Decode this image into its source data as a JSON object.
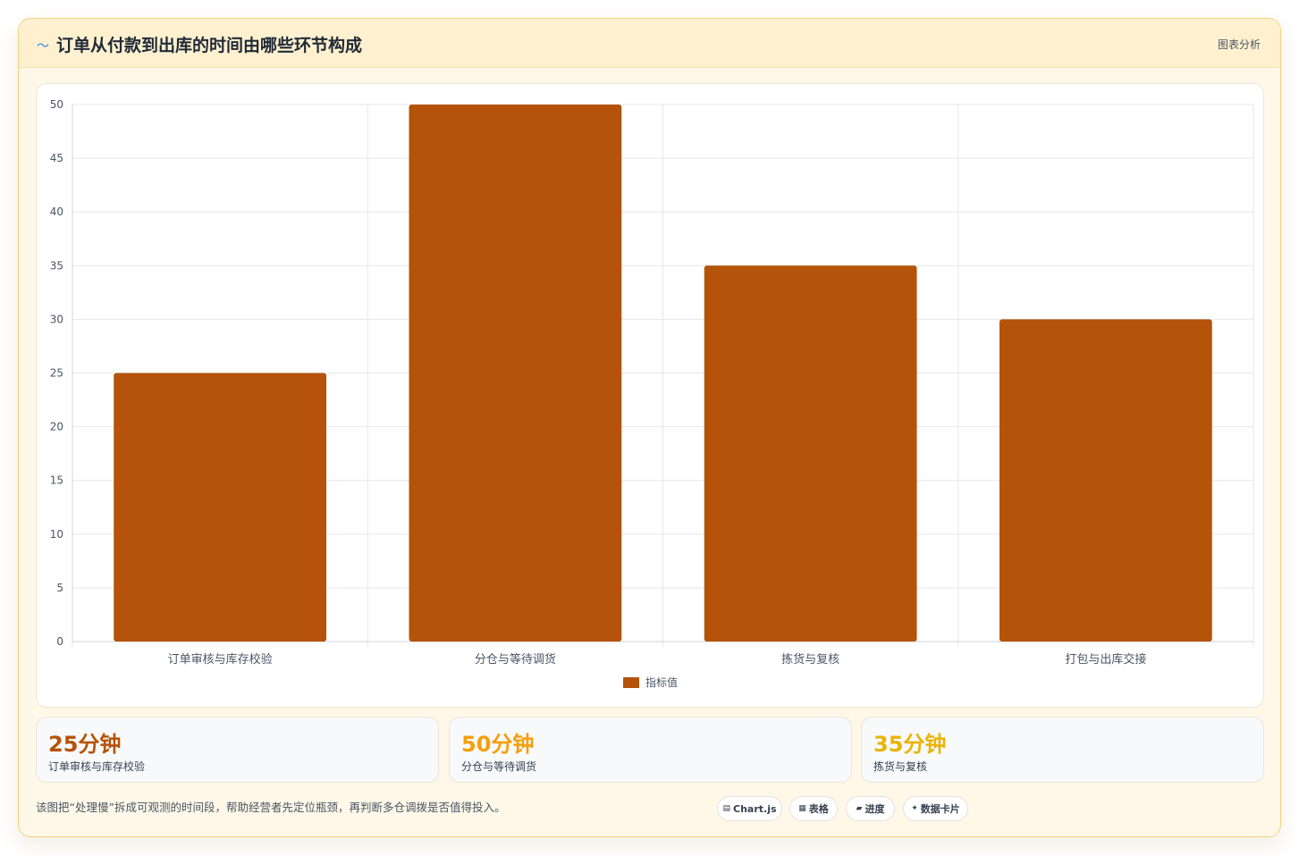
{
  "header": {
    "icon": "〜",
    "title": "订单从付款到出库的时间由哪些环节构成",
    "tag": "图表分析"
  },
  "chart_data": {
    "type": "bar",
    "categories": [
      "订单审核与库存校验",
      "分仓与等待调货",
      "拣货与复核",
      "打包与出库交接"
    ],
    "series": [
      {
        "name": "指标值",
        "values": [
          25,
          50,
          35,
          30
        ]
      }
    ],
    "ylim": [
      0,
      50
    ],
    "yticks": [
      0,
      5,
      10,
      15,
      20,
      25,
      30,
      35,
      40,
      45,
      50
    ],
    "grid": true,
    "legend": "bottom",
    "bar_color": "#b45309"
  },
  "stats": [
    {
      "value": "25分钟",
      "label": "订单审核与库存校验",
      "color": "#b45309"
    },
    {
      "value": "50分钟",
      "label": "分仓与等待调货",
      "color": "#f59e0b"
    },
    {
      "value": "35分钟",
      "label": "拣货与复核",
      "color": "#eab308"
    }
  ],
  "footnote": "该图把“处理慢”拆成可观测的时间段，帮助经营者先定位瓶颈，再判断多仓调拨是否值得投入。",
  "chips": [
    {
      "icon": "▤",
      "label": "Chart.js"
    },
    {
      "icon": "▦",
      "label": "表格"
    },
    {
      "icon": "▰",
      "label": "进度"
    },
    {
      "icon": "✦",
      "label": "数据卡片"
    }
  ]
}
